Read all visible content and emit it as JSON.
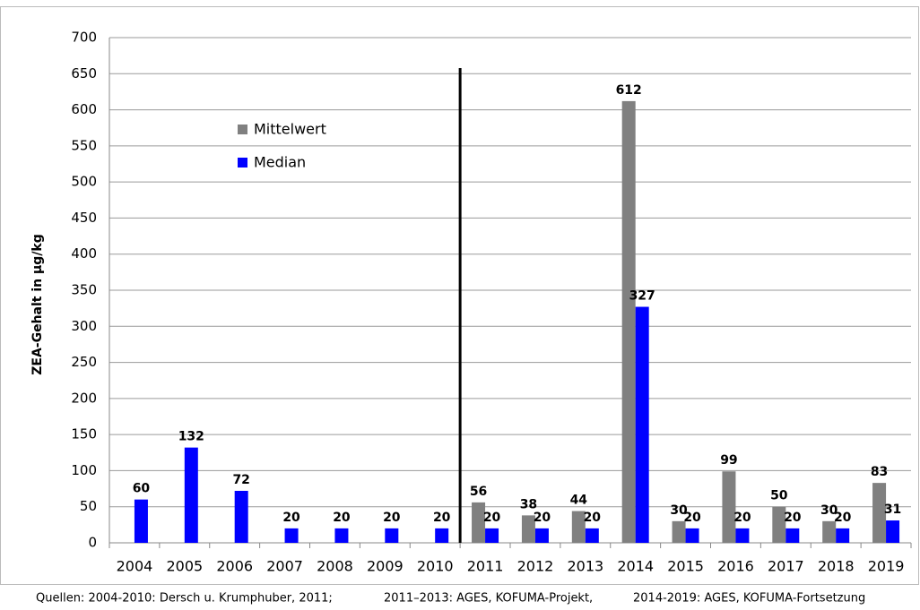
{
  "chart_data": {
    "type": "bar",
    "y_label": "ZEA-Gehalt in µg/kg",
    "categories": [
      "2004",
      "2005",
      "2006",
      "2007",
      "2008",
      "2009",
      "2010",
      "2011",
      "2012",
      "2013",
      "2014",
      "2015",
      "2016",
      "2017",
      "2018",
      "2019"
    ],
    "series": [
      {
        "name": "Mittelwert",
        "color": "#808080",
        "values": [
          null,
          null,
          null,
          null,
          null,
          null,
          null,
          56,
          38,
          44,
          612,
          30,
          99,
          50,
          30,
          83
        ]
      },
      {
        "name": "Median",
        "color": "#0000ff",
        "values": [
          60,
          132,
          72,
          20,
          20,
          20,
          20,
          20,
          20,
          20,
          327,
          20,
          20,
          20,
          20,
          31
        ]
      }
    ],
    "ylim": [
      0,
      700
    ],
    "yticks": [
      0,
      50,
      100,
      150,
      200,
      250,
      300,
      350,
      400,
      450,
      500,
      550,
      600,
      650,
      700
    ],
    "grid": true,
    "legend": "top-left",
    "sources": [
      "Quellen: 2004-2010: Dersch u. Krumphuber, 2011;",
      "2011–2013: AGES, KOFUMA-Projekt,",
      "2014-2019: AGES, KOFUMA-Fortsetzung"
    ]
  }
}
